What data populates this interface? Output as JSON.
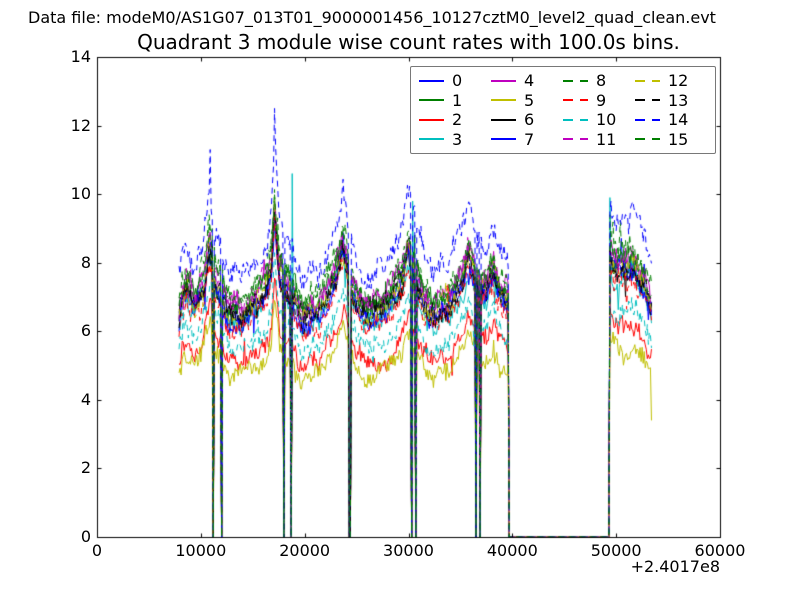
{
  "header": {
    "text": "Data file: modeM0/AS1G07_013T01_9000001456_10127cztM0_level2_quad_clean.evt"
  },
  "chart_data": {
    "type": "line",
    "title": "Quadrant 3 module wise count rates with 100.0s bins.",
    "xlabel": "",
    "ylabel": "",
    "xlim": [
      0,
      60000
    ],
    "ylim": [
      0,
      14
    ],
    "x_ticks": [
      0,
      10000,
      20000,
      30000,
      40000,
      50000,
      60000
    ],
    "y_ticks": [
      0,
      2,
      4,
      6,
      8,
      10,
      12,
      14
    ],
    "x_offset_label": "+2.4017e8",
    "bin_seconds": 100,
    "grid": false,
    "legend_position": "upper right",
    "legend_columns": 4,
    "x_data_range": [
      7900,
      53400
    ],
    "zero_gaps": [
      [
        11150,
        11250
      ],
      [
        11950,
        12050
      ],
      [
        17950,
        18050
      ],
      [
        18650,
        18750
      ],
      [
        24300,
        24440
      ],
      [
        30290,
        30390
      ],
      [
        30680,
        30780
      ],
      [
        36450,
        36550
      ],
      [
        36840,
        36940
      ],
      [
        39620,
        49300
      ]
    ],
    "trend": [
      [
        7900,
        6.5
      ],
      [
        8200,
        7.0
      ],
      [
        8600,
        7.3
      ],
      [
        9000,
        7.0
      ],
      [
        9400,
        6.8
      ],
      [
        9800,
        7.0
      ],
      [
        10300,
        7.4
      ],
      [
        10800,
        8.5
      ],
      [
        11000,
        8.2
      ],
      [
        11200,
        7.7
      ],
      [
        11500,
        7.4
      ],
      [
        11900,
        7.2
      ],
      [
        12300,
        6.8
      ],
      [
        12800,
        6.5
      ],
      [
        13400,
        6.6
      ],
      [
        14000,
        6.45
      ],
      [
        14600,
        6.6
      ],
      [
        15200,
        6.9
      ],
      [
        15800,
        7.1
      ],
      [
        16400,
        7.4
      ],
      [
        16800,
        8.0
      ],
      [
        17100,
        9.6
      ],
      [
        17300,
        8.8
      ],
      [
        17600,
        7.7
      ],
      [
        17900,
        7.45
      ],
      [
        18200,
        7.35
      ],
      [
        18500,
        7.25
      ],
      [
        18900,
        7.1
      ],
      [
        19300,
        6.7
      ],
      [
        19800,
        6.35
      ],
      [
        20300,
        6.5
      ],
      [
        20800,
        6.6
      ],
      [
        21300,
        6.5
      ],
      [
        21900,
        6.9
      ],
      [
        22500,
        7.3
      ],
      [
        23000,
        7.6
      ],
      [
        23400,
        8.1
      ],
      [
        23700,
        8.5
      ],
      [
        24000,
        8.0
      ],
      [
        24300,
        7.6
      ],
      [
        24600,
        7.2
      ],
      [
        25100,
        6.85
      ],
      [
        25700,
        6.5
      ],
      [
        26300,
        6.45
      ],
      [
        26900,
        6.7
      ],
      [
        27500,
        6.6
      ],
      [
        28100,
        6.9
      ],
      [
        28700,
        7.2
      ],
      [
        29300,
        7.5
      ],
      [
        29700,
        7.9
      ],
      [
        30000,
        8.4
      ],
      [
        30200,
        8.1
      ],
      [
        30400,
        7.8
      ],
      [
        30900,
        7.4
      ],
      [
        31400,
        7.0
      ],
      [
        32000,
        6.6
      ],
      [
        32600,
        6.55
      ],
      [
        33200,
        6.8
      ],
      [
        33800,
        6.7
      ],
      [
        34400,
        7.1
      ],
      [
        35000,
        7.4
      ],
      [
        35400,
        7.7
      ],
      [
        35800,
        8.2
      ],
      [
        36100,
        7.9
      ],
      [
        36400,
        7.6
      ],
      [
        36700,
        7.4
      ],
      [
        37100,
        7.3
      ],
      [
        37500,
        7.25
      ],
      [
        37900,
        7.6
      ],
      [
        38200,
        7.7
      ],
      [
        38500,
        7.4
      ],
      [
        38900,
        7.1
      ],
      [
        39300,
        7.0
      ],
      [
        39600,
        6.9
      ],
      [
        49400,
        8.2
      ],
      [
        49800,
        7.9
      ],
      [
        50200,
        7.8
      ],
      [
        50600,
        7.9
      ],
      [
        51000,
        7.8
      ],
      [
        51400,
        8.0
      ],
      [
        51800,
        7.9
      ],
      [
        52200,
        7.6
      ],
      [
        52600,
        7.4
      ],
      [
        53000,
        7.1
      ],
      [
        53400,
        6.8
      ]
    ],
    "spikes": [
      [
        10900,
        14,
        11.3
      ],
      [
        17100,
        14,
        12.5
      ],
      [
        18800,
        3,
        10.6
      ],
      [
        30400,
        3,
        9.8
      ],
      [
        49400,
        3,
        9.9
      ],
      [
        49400,
        8,
        9.4
      ],
      [
        53400,
        5,
        3.4
      ]
    ],
    "series": [
      {
        "label": "0",
        "color": "#0000ff",
        "linestyle": "solid",
        "level_scale": 1.0,
        "level_offset": -0.15,
        "noise_amp": 0.25
      },
      {
        "label": "1",
        "color": "#007f00",
        "linestyle": "solid",
        "level_scale": 1.0,
        "level_offset": 0.1,
        "noise_amp": 0.25
      },
      {
        "label": "2",
        "color": "#ff0000",
        "linestyle": "solid",
        "level_scale": 0.82,
        "level_offset": -0.25,
        "noise_amp": 0.22
      },
      {
        "label": "3",
        "color": "#00bfbf",
        "linestyle": "solid",
        "level_scale": 1.0,
        "level_offset": -0.35,
        "noise_amp": 0.25
      },
      {
        "label": "4",
        "color": "#bf00bf",
        "linestyle": "solid",
        "level_scale": 1.0,
        "level_offset": 0.25,
        "noise_amp": 0.25
      },
      {
        "label": "5",
        "color": "#bfbf00",
        "linestyle": "solid",
        "level_scale": 0.78,
        "level_offset": -0.45,
        "noise_amp": 0.22
      },
      {
        "label": "6",
        "color": "#000000",
        "linestyle": "solid",
        "level_scale": 1.0,
        "level_offset": -0.05,
        "noise_amp": 0.25
      },
      {
        "label": "7",
        "color": "#0000ff",
        "linestyle": "solid",
        "level_scale": 1.0,
        "level_offset": -0.25,
        "noise_amp": 0.25
      },
      {
        "label": "8",
        "color": "#007f00",
        "linestyle": "dashed",
        "level_scale": 1.04,
        "level_offset": 0.15,
        "noise_amp": 0.28
      },
      {
        "label": "9",
        "color": "#ff0000",
        "linestyle": "dashed",
        "level_scale": 1.0,
        "level_offset": -0.4,
        "noise_amp": 0.25
      },
      {
        "label": "10",
        "color": "#00bfbf",
        "linestyle": "dashed",
        "level_scale": 0.85,
        "level_offset": 0.0,
        "noise_amp": 0.25
      },
      {
        "label": "11",
        "color": "#bf00bf",
        "linestyle": "dashed",
        "level_scale": 1.0,
        "level_offset": 0.15,
        "noise_amp": 0.27
      },
      {
        "label": "12",
        "color": "#bfbf00",
        "linestyle": "dashed",
        "level_scale": 1.0,
        "level_offset": 0.0,
        "noise_amp": 0.25
      },
      {
        "label": "13",
        "color": "#000000",
        "linestyle": "dashed",
        "level_scale": 1.0,
        "level_offset": -0.1,
        "noise_amp": 0.25
      },
      {
        "label": "14",
        "color": "#0000ff",
        "linestyle": "dashed",
        "level_scale": 1.3,
        "level_offset": -0.85,
        "noise_amp": 0.3
      },
      {
        "label": "15",
        "color": "#007f00",
        "linestyle": "dashed",
        "level_scale": 1.02,
        "level_offset": 0.2,
        "noise_amp": 0.27
      }
    ]
  },
  "colors": {
    "axis": "#000000",
    "background": "#ffffff",
    "legend_border": "#787878"
  }
}
